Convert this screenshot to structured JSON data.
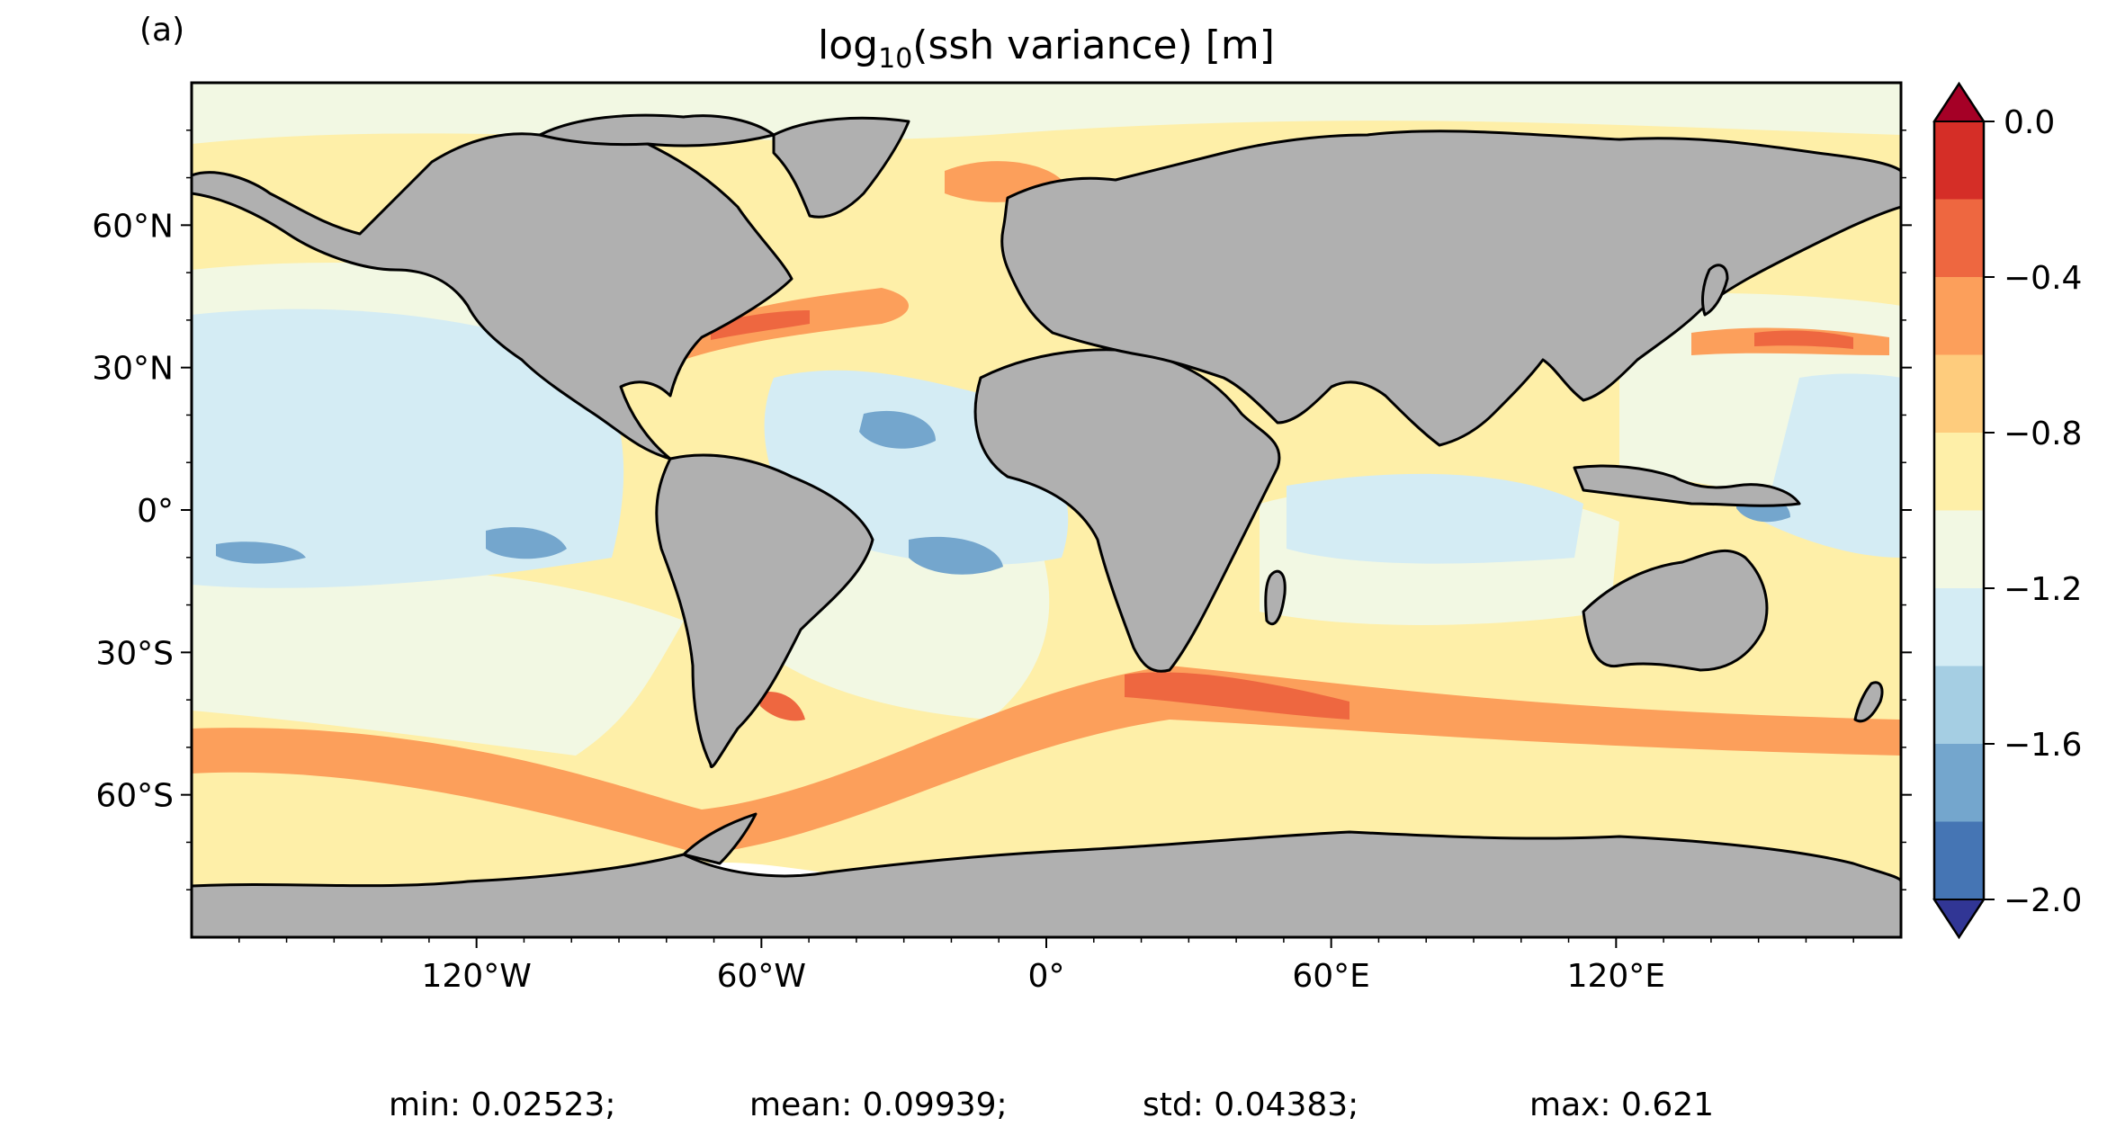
{
  "panel_label": "(a)",
  "title": {
    "main": "log",
    "sub": "10",
    "rest": "(ssh variance) [m]"
  },
  "y_ticks": [
    "60°N",
    "30°N",
    "0°",
    "30°S",
    "60°S"
  ],
  "x_ticks": [
    "120°W",
    "60°W",
    "0°",
    "60°E",
    "120°E"
  ],
  "colorbar": {
    "tick_labels": [
      "0.0",
      "−0.4",
      "−0.8",
      "−1.2",
      "−1.6",
      "−2.0"
    ],
    "levels": [
      -2.0,
      -1.8,
      -1.6,
      -1.4,
      -1.2,
      -1.0,
      -0.8,
      -0.6,
      -0.4,
      -0.2,
      0.0
    ],
    "colors": [
      "#4575b4",
      "#74a6cd",
      "#a5cee3",
      "#d4ecf4",
      "#f2f8e3",
      "#feefa8",
      "#fecc7d",
      "#fc9f5b",
      "#ee6740",
      "#d52e27"
    ],
    "under_color": "#313695",
    "over_color": "#a50026"
  },
  "colors": {
    "land": "#b0b0b0",
    "ocean_base": "#feefa8",
    "coast": "#000000"
  },
  "stats": {
    "min": "min: 0.02523;",
    "mean": "mean: 0.09939;",
    "std": "std: 0.04383;",
    "max": "max: 0.621"
  }
}
